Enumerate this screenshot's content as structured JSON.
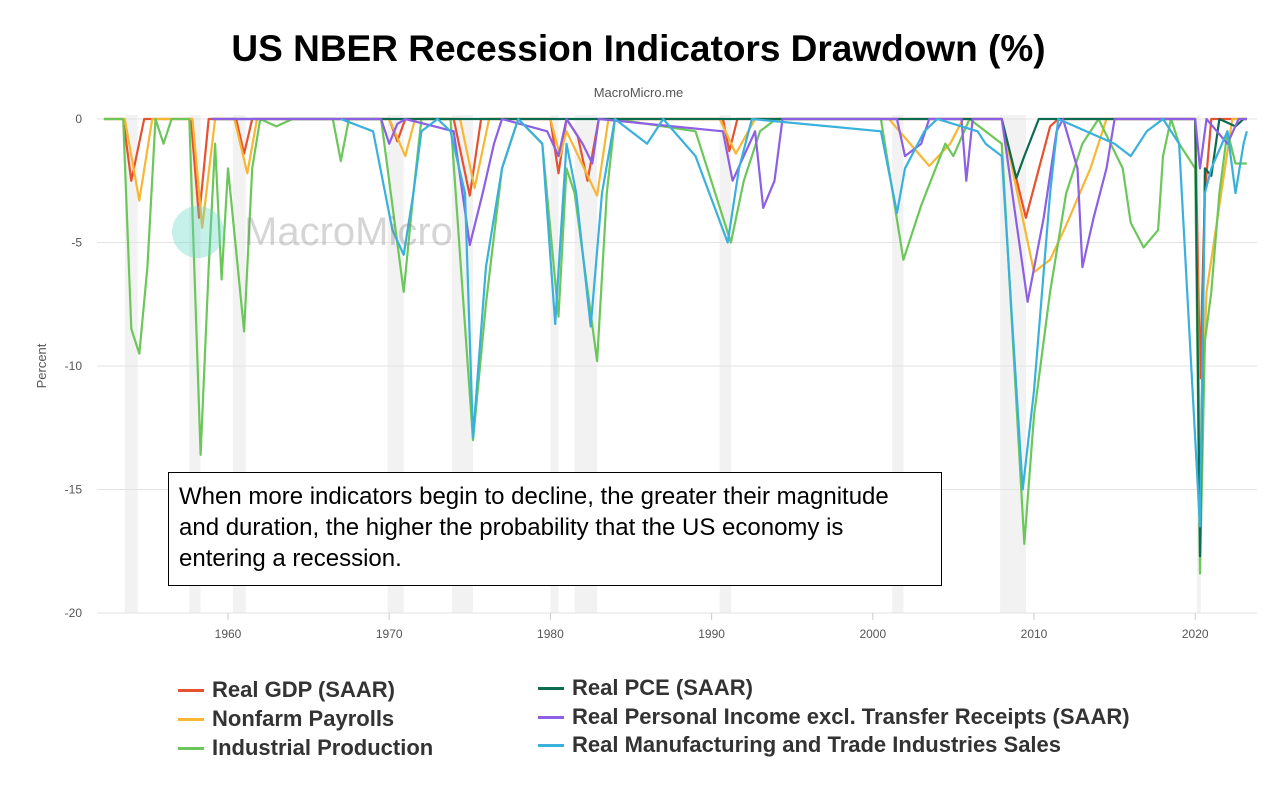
{
  "title": "US NBER Recession Indicators Drawdown (%)",
  "subtitle": "MacroMicro.me",
  "watermark": "MacroMicro",
  "annotation": "When more indicators begin to decline, the greater their magnitude and duration, the higher the probability that the US economy is entering a recession.",
  "chart_data": {
    "type": "line",
    "title": "US NBER Recession Indicators Drawdown (%)",
    "ylabel": "Percent",
    "xlabel": "",
    "xlim": [
      1952.3,
      2023.3
    ],
    "ylim": [
      -20,
      0
    ],
    "yticks": [
      0,
      -5,
      -10,
      -15,
      -20
    ],
    "xticks": [
      1960,
      1970,
      1980,
      1990,
      2000,
      2010,
      2020
    ],
    "grid": true,
    "legend": "bottom",
    "recession_bands": [
      [
        1953.6,
        1954.4
      ],
      [
        1957.6,
        1958.3
      ],
      [
        1960.3,
        1961.1
      ],
      [
        1969.9,
        1970.9
      ],
      [
        1973.9,
        1975.2
      ],
      [
        1980.0,
        1980.5
      ],
      [
        1981.5,
        1982.9
      ],
      [
        1990.5,
        1991.2
      ],
      [
        2001.2,
        2001.9
      ],
      [
        2007.9,
        2009.5
      ],
      [
        2020.1,
        2020.3
      ]
    ],
    "series": [
      {
        "name": "Real GDP (SAAR)",
        "color": "#e8512f",
        "points": [
          [
            1952.3,
            0
          ],
          [
            1953.5,
            0
          ],
          [
            1954.0,
            -2.5
          ],
          [
            1954.8,
            0
          ],
          [
            1957.7,
            0
          ],
          [
            1958.2,
            -4
          ],
          [
            1958.8,
            0
          ],
          [
            1960.5,
            0
          ],
          [
            1961,
            -1.4
          ],
          [
            1961.5,
            0
          ],
          [
            1970,
            0
          ],
          [
            1970.5,
            -0.9
          ],
          [
            1971,
            0
          ],
          [
            1974,
            0
          ],
          [
            1975,
            -3.1
          ],
          [
            1975.7,
            0
          ],
          [
            1980,
            0
          ],
          [
            1980.5,
            -2.2
          ],
          [
            1981,
            0
          ],
          [
            1981.7,
            -0.7
          ],
          [
            1982.3,
            -2.5
          ],
          [
            1983,
            0
          ],
          [
            1990.7,
            0
          ],
          [
            1991.1,
            -1.3
          ],
          [
            1991.6,
            0
          ],
          [
            2008,
            0
          ],
          [
            2009.5,
            -4.0
          ],
          [
            2011,
            -0.3
          ],
          [
            2011.5,
            0
          ],
          [
            2020.0,
            0
          ],
          [
            2020.3,
            -10.5
          ],
          [
            2020.6,
            -3
          ],
          [
            2021,
            0
          ],
          [
            2023.2,
            0
          ]
        ]
      },
      {
        "name": "Nonfarm Payrolls",
        "color": "#f7b733",
        "points": [
          [
            1952.3,
            0
          ],
          [
            1953.6,
            0
          ],
          [
            1954.5,
            -3.3
          ],
          [
            1955.3,
            0
          ],
          [
            1957.8,
            0
          ],
          [
            1958.4,
            -4.4
          ],
          [
            1959.2,
            0
          ],
          [
            1960.4,
            0
          ],
          [
            1961.2,
            -2.2
          ],
          [
            1961.8,
            0
          ],
          [
            1970,
            0
          ],
          [
            1971,
            -1.5
          ],
          [
            1971.6,
            0
          ],
          [
            1974.4,
            0
          ],
          [
            1975.3,
            -2.8
          ],
          [
            1976.2,
            0
          ],
          [
            1980,
            0
          ],
          [
            1980.6,
            -1.5
          ],
          [
            1981,
            -0.5
          ],
          [
            1982.9,
            -3.1
          ],
          [
            1983.6,
            0
          ],
          [
            1990.5,
            0
          ],
          [
            1991.5,
            -1.4
          ],
          [
            1992.7,
            0
          ],
          [
            2001,
            0
          ],
          [
            2003.5,
            -1.9
          ],
          [
            2004.8,
            -1
          ],
          [
            2005.6,
            0
          ],
          [
            2008,
            0
          ],
          [
            2010,
            -6.2
          ],
          [
            2011,
            -5.7
          ],
          [
            2012,
            -4.3
          ],
          [
            2013.5,
            -2
          ],
          [
            2014.5,
            0
          ],
          [
            2020,
            0
          ],
          [
            2020.3,
            -14.5
          ],
          [
            2020.7,
            -7
          ],
          [
            2021.5,
            -3.5
          ],
          [
            2022.3,
            0
          ],
          [
            2023.2,
            0
          ]
        ]
      },
      {
        "name": "Industrial Production",
        "color": "#6cc75a",
        "points": [
          [
            1952.3,
            0
          ],
          [
            1953.5,
            0
          ],
          [
            1954,
            -8.5
          ],
          [
            1954.5,
            -9.5
          ],
          [
            1955,
            -6
          ],
          [
            1955.5,
            0
          ],
          [
            1956,
            -1
          ],
          [
            1956.5,
            0
          ],
          [
            1957.6,
            0
          ],
          [
            1958.3,
            -13.6
          ],
          [
            1958.8,
            -6
          ],
          [
            1959.2,
            -1
          ],
          [
            1959.6,
            -6.5
          ],
          [
            1960,
            -2
          ],
          [
            1961,
            -8.6
          ],
          [
            1961.5,
            -2
          ],
          [
            1962,
            0
          ],
          [
            1963,
            -0.3
          ],
          [
            1964,
            0
          ],
          [
            1966.5,
            0
          ],
          [
            1967,
            -1.7
          ],
          [
            1967.5,
            0
          ],
          [
            1969.5,
            0
          ],
          [
            1970.9,
            -7
          ],
          [
            1971.5,
            -3
          ],
          [
            1972,
            0
          ],
          [
            1973.8,
            0
          ],
          [
            1975.2,
            -13
          ],
          [
            1976,
            -7.5
          ],
          [
            1977,
            -2
          ],
          [
            1978,
            0
          ],
          [
            1979.5,
            -1
          ],
          [
            1980.5,
            -8
          ],
          [
            1981,
            -2
          ],
          [
            1981.5,
            -3
          ],
          [
            1982.9,
            -9.8
          ],
          [
            1983.5,
            -3
          ],
          [
            1984,
            0
          ],
          [
            1989,
            -0.5
          ],
          [
            1991.2,
            -5
          ],
          [
            1992,
            -2.5
          ],
          [
            1993,
            -0.5
          ],
          [
            1994,
            0
          ],
          [
            2000.5,
            0
          ],
          [
            2001.9,
            -5.7
          ],
          [
            2003,
            -3.5
          ],
          [
            2004.5,
            -1
          ],
          [
            2005,
            -1.5
          ],
          [
            2006,
            0
          ],
          [
            2008,
            -1
          ],
          [
            2009.4,
            -17.2
          ],
          [
            2010,
            -12
          ],
          [
            2011,
            -7
          ],
          [
            2012,
            -3
          ],
          [
            2013,
            -1
          ],
          [
            2014,
            0
          ],
          [
            2015.5,
            -2
          ],
          [
            2016,
            -4.2
          ],
          [
            2016.8,
            -5.2
          ],
          [
            2017.7,
            -4.5
          ],
          [
            2018,
            -1.5
          ],
          [
            2018.5,
            0
          ],
          [
            2019,
            -1
          ],
          [
            2020,
            -2
          ],
          [
            2020.3,
            -18.4
          ],
          [
            2020.6,
            -9
          ],
          [
            2021,
            -7
          ],
          [
            2021.5,
            -3
          ],
          [
            2022,
            -0.5
          ],
          [
            2022.5,
            -1.8
          ],
          [
            2023.2,
            -1.8
          ]
        ]
      },
      {
        "name": "Real PCE (SAAR)",
        "color": "#0d6b52",
        "points": [
          [
            1959,
            0
          ],
          [
            2008,
            0
          ],
          [
            2008.9,
            -2.4
          ],
          [
            2009.4,
            -1.5
          ],
          [
            2010.3,
            0
          ],
          [
            2020,
            0
          ],
          [
            2020.3,
            -17.7
          ],
          [
            2020.6,
            -2
          ],
          [
            2021,
            -2.3
          ],
          [
            2021.5,
            0
          ],
          [
            2022.5,
            -0.3
          ],
          [
            2023,
            0
          ],
          [
            2023.2,
            0
          ]
        ]
      },
      {
        "name": "Real Personal Income excl. Transfer Receipts (SAAR)",
        "color": "#8d5fe3",
        "points": [
          [
            1959,
            0
          ],
          [
            1969.5,
            0
          ],
          [
            1970,
            -1
          ],
          [
            1970.5,
            -0.2
          ],
          [
            1971,
            0
          ],
          [
            1974,
            -0.5
          ],
          [
            1975,
            -5.1
          ],
          [
            1975.8,
            -3
          ],
          [
            1976.5,
            -1
          ],
          [
            1977,
            0
          ],
          [
            1979.8,
            -0.5
          ],
          [
            1980.5,
            -1.5
          ],
          [
            1981,
            0
          ],
          [
            1982,
            -1
          ],
          [
            1982.6,
            -1.8
          ],
          [
            1983,
            0
          ],
          [
            1990.7,
            -0.5
          ],
          [
            1991.3,
            -2.5
          ],
          [
            1992,
            -1.5
          ],
          [
            1992.7,
            -0.5
          ],
          [
            1993.2,
            -3.6
          ],
          [
            1993.9,
            -2.5
          ],
          [
            1994.4,
            0
          ],
          [
            2001.5,
            0
          ],
          [
            2002,
            -1.5
          ],
          [
            2003,
            -1
          ],
          [
            2003.5,
            0
          ],
          [
            2005.5,
            0
          ],
          [
            2005.8,
            -2.5
          ],
          [
            2006.2,
            0
          ],
          [
            2008,
            0
          ],
          [
            2009.6,
            -7.4
          ],
          [
            2010.6,
            -4
          ],
          [
            2011.4,
            -0.5
          ],
          [
            2011.8,
            0
          ],
          [
            2012.7,
            -2
          ],
          [
            2013,
            -6
          ],
          [
            2013.7,
            -4
          ],
          [
            2014.5,
            -2
          ],
          [
            2015,
            0
          ],
          [
            2020,
            0
          ],
          [
            2020.3,
            -2
          ],
          [
            2020.7,
            0
          ],
          [
            2022,
            -1
          ],
          [
            2022.7,
            0
          ],
          [
            2023.2,
            0
          ]
        ]
      },
      {
        "name": "Real Manufacturing and Trade Industries Sales",
        "color": "#3ab0dd",
        "points": [
          [
            1967,
            0
          ],
          [
            1969,
            -0.5
          ],
          [
            1970.2,
            -4.5
          ],
          [
            1970.9,
            -5.5
          ],
          [
            1971.5,
            -3
          ],
          [
            1972,
            -0.5
          ],
          [
            1973,
            0
          ],
          [
            1973.8,
            -0.5
          ],
          [
            1974.7,
            -3
          ],
          [
            1975.2,
            -12.9
          ],
          [
            1976,
            -6
          ],
          [
            1977,
            -2
          ],
          [
            1978,
            0
          ],
          [
            1979.5,
            -1
          ],
          [
            1980.3,
            -8.3
          ],
          [
            1981,
            -1
          ],
          [
            1981.6,
            -3
          ],
          [
            1982.5,
            -8.4
          ],
          [
            1983.2,
            -3
          ],
          [
            1984,
            0
          ],
          [
            1986,
            -1
          ],
          [
            1987,
            0
          ],
          [
            1989,
            -1.5
          ],
          [
            1991,
            -5
          ],
          [
            1991.7,
            -2
          ],
          [
            1992.5,
            0
          ],
          [
            2000.5,
            -0.5
          ],
          [
            2001.5,
            -3.8
          ],
          [
            2002,
            -2
          ],
          [
            2003.2,
            -0.5
          ],
          [
            2004,
            0
          ],
          [
            2006.5,
            -0.5
          ],
          [
            2007,
            -1
          ],
          [
            2008,
            -1.5
          ],
          [
            2009.3,
            -15
          ],
          [
            2010,
            -11
          ],
          [
            2011,
            -3
          ],
          [
            2011.5,
            0
          ],
          [
            2015,
            -1
          ],
          [
            2016,
            -1.5
          ],
          [
            2017,
            -0.5
          ],
          [
            2018,
            0
          ],
          [
            2019,
            -1
          ],
          [
            2020.3,
            -16.5
          ],
          [
            2020.6,
            -3
          ],
          [
            2021,
            -2
          ],
          [
            2022,
            -0.5
          ],
          [
            2022.5,
            -3
          ],
          [
            2023,
            -1
          ],
          [
            2023.2,
            -0.5
          ]
        ]
      }
    ]
  }
}
